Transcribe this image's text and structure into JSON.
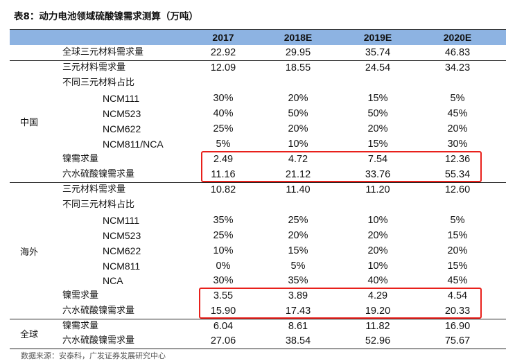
{
  "title": "表8：动力电池领域硫酸镍需求测算（万吨）",
  "columns": [
    "2017",
    "2018E",
    "2019E",
    "2020E"
  ],
  "top_row": {
    "label": "全球三元材料需求量",
    "values": [
      "22.92",
      "29.95",
      "35.74",
      "46.83"
    ]
  },
  "sections": [
    {
      "region": "中国",
      "rows": [
        {
          "label": "三元材料需求量",
          "values": [
            "12.09",
            "18.55",
            "24.54",
            "34.23"
          ]
        },
        {
          "label": "不同三元材料占比",
          "values": [
            "",
            "",
            "",
            ""
          ]
        },
        {
          "label": "NCM111",
          "indent": true,
          "values": [
            "30%",
            "20%",
            "15%",
            "5%"
          ]
        },
        {
          "label": "NCM523",
          "indent": true,
          "values": [
            "40%",
            "50%",
            "50%",
            "45%"
          ]
        },
        {
          "label": "NCM622",
          "indent": true,
          "values": [
            "25%",
            "20%",
            "20%",
            "20%"
          ]
        },
        {
          "label": "NCM811/NCA",
          "indent": true,
          "values": [
            "5%",
            "10%",
            "15%",
            "30%"
          ]
        },
        {
          "label": "镍需求量",
          "values": [
            "2.49",
            "4.72",
            "7.54",
            "12.36"
          ],
          "highlight": true
        },
        {
          "label": "六水硫酸镍需求量",
          "values": [
            "11.16",
            "21.12",
            "33.76",
            "55.34"
          ],
          "highlight": true
        }
      ]
    },
    {
      "region": "海外",
      "rows": [
        {
          "label": "三元材料需求量",
          "values": [
            "10.82",
            "11.40",
            "11.20",
            "12.60"
          ]
        },
        {
          "label": "不同三元材料占比",
          "values": [
            "",
            "",
            "",
            ""
          ]
        },
        {
          "label": "NCM111",
          "indent": true,
          "values": [
            "35%",
            "25%",
            "10%",
            "5%"
          ]
        },
        {
          "label": "NCM523",
          "indent": true,
          "values": [
            "25%",
            "20%",
            "20%",
            "15%"
          ]
        },
        {
          "label": "NCM622",
          "indent": true,
          "values": [
            "10%",
            "15%",
            "20%",
            "20%"
          ]
        },
        {
          "label": "NCM811",
          "indent": true,
          "values": [
            "0%",
            "5%",
            "10%",
            "15%"
          ]
        },
        {
          "label": "NCA",
          "indent": true,
          "values": [
            "30%",
            "35%",
            "40%",
            "45%"
          ]
        },
        {
          "label": "镍需求量",
          "values": [
            "3.55",
            "3.89",
            "4.29",
            "4.54"
          ],
          "highlight": true
        },
        {
          "label": "六水硫酸镍需求量",
          "values": [
            "15.90",
            "17.43",
            "19.20",
            "20.33"
          ],
          "highlight": true
        }
      ]
    },
    {
      "region": "全球",
      "rows": [
        {
          "label": "镍需求量",
          "values": [
            "6.04",
            "8.61",
            "11.82",
            "16.90"
          ]
        },
        {
          "label": "六水硫酸镍需求量",
          "values": [
            "27.06",
            "38.54",
            "52.96",
            "75.67"
          ]
        }
      ]
    }
  ],
  "source": "数据来源：安泰科，广发证券发展研究中心",
  "highlight_color": "#e8201b",
  "header_color": "#8DB3E2"
}
